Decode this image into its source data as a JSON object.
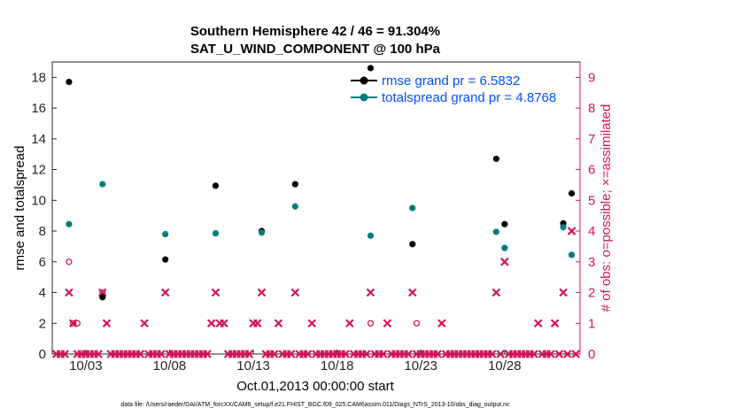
{
  "colors": {
    "rmse": "#000000",
    "spread": "#007e7e",
    "obs": "#d4145a",
    "legend_text": "#0050ff"
  },
  "chart_data": {
    "type": "scatter",
    "title_line1": "Southern Hemisphere 42 / 46 = 91.304%",
    "title_line2": "SAT_U_WIND_COMPONENT @ 100 hPa",
    "xlabel": "Oct.01,2013 00:00:00 start",
    "ylabel_left": "rmse and totalspread",
    "ylabel_right": "# of obs: o=possible; ×=assimilated",
    "footnote": "data file: /Users/raeder/DAI/ATM_forcXX/CAM6_setup/f.e21.FHIST_BGC.f09_025.CAM6assim.011/Diags_NTrS_2013-10/obs_diag_output.nc",
    "xlim": [
      1,
      32.5
    ],
    "ylim_left": [
      0,
      19
    ],
    "ylim_right": [
      0,
      9.5
    ],
    "x_ticks": [
      3,
      8,
      13,
      18,
      23,
      28
    ],
    "x_tick_labels": [
      "10/03",
      "10/08",
      "10/13",
      "10/18",
      "10/23",
      "10/28"
    ],
    "y_ticks_left": [
      0,
      2,
      4,
      6,
      8,
      10,
      12,
      14,
      16,
      18
    ],
    "y_ticks_right": [
      0,
      1,
      2,
      3,
      4,
      5,
      6,
      7,
      8,
      9
    ],
    "legend_placement": "top-right",
    "series": [
      {
        "name": "rmse grand pr = 6.5832",
        "axis": "left",
        "points": [
          [
            2.0,
            17.7
          ],
          [
            4.0,
            3.7
          ],
          [
            7.75,
            6.15
          ],
          [
            10.75,
            10.95
          ],
          [
            13.5,
            8.0
          ],
          [
            15.5,
            11.05
          ],
          [
            20.0,
            18.6
          ],
          [
            22.5,
            7.15
          ],
          [
            27.5,
            12.7
          ],
          [
            28.0,
            8.45
          ],
          [
            31.5,
            8.5
          ],
          [
            32.0,
            10.45
          ]
        ]
      },
      {
        "name": "totalspread grand pr = 4.8768",
        "axis": "left",
        "points": [
          [
            2.0,
            8.45
          ],
          [
            4.0,
            11.05
          ],
          [
            7.75,
            7.8
          ],
          [
            10.75,
            7.85
          ],
          [
            13.5,
            7.9
          ],
          [
            15.5,
            9.6
          ],
          [
            20.0,
            7.7
          ],
          [
            22.5,
            9.5
          ],
          [
            27.5,
            7.95
          ],
          [
            28.0,
            6.9
          ],
          [
            31.5,
            8.25
          ],
          [
            32.0,
            6.45
          ]
        ]
      }
    ],
    "obs_possible": [
      [
        2.0,
        3
      ],
      [
        2.25,
        1
      ],
      [
        2.5,
        1
      ],
      [
        4.0,
        2
      ],
      [
        20.0,
        1
      ],
      [
        22.75,
        1
      ]
    ],
    "obs_assimilated_nonzero": [
      [
        2.0,
        2
      ],
      [
        2.25,
        1
      ],
      [
        4.0,
        2
      ],
      [
        4.25,
        1
      ],
      [
        6.5,
        1
      ],
      [
        7.75,
        2
      ],
      [
        10.5,
        1
      ],
      [
        10.75,
        2
      ],
      [
        11.0,
        1
      ],
      [
        11.25,
        1
      ],
      [
        13.0,
        1
      ],
      [
        13.25,
        1
      ],
      [
        13.5,
        2
      ],
      [
        14.5,
        1
      ],
      [
        15.5,
        2
      ],
      [
        16.5,
        1
      ],
      [
        18.75,
        1
      ],
      [
        20.0,
        2
      ],
      [
        21.0,
        1
      ],
      [
        22.5,
        2
      ],
      [
        24.25,
        1
      ],
      [
        27.5,
        2
      ],
      [
        28.0,
        3
      ],
      [
        30.0,
        1
      ],
      [
        31.0,
        1
      ],
      [
        31.5,
        2
      ],
      [
        32.0,
        4
      ]
    ]
  }
}
